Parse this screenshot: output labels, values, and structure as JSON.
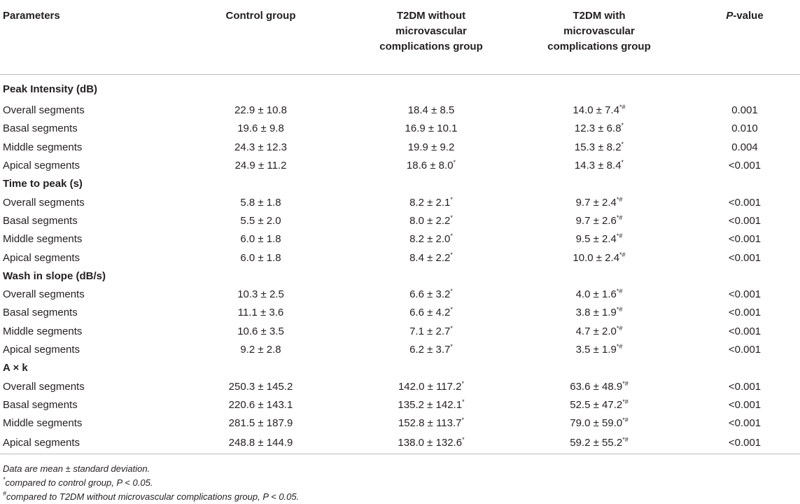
{
  "table": {
    "headers": {
      "parameters": "Parameters",
      "control": "Control group",
      "without": "T2DM without microvascular complications group",
      "with": "T2DM with microvascular complications group",
      "p_italic": "P",
      "p_rest": "-value"
    },
    "sections": [
      {
        "title": "Peak Intensity (dB)",
        "rows": [
          {
            "label": "Overall segments",
            "control": "22.9 ± 10.8",
            "without": "18.4 ± 8.5",
            "with": "14.0 ± 7.4",
            "with_sup": "*#",
            "without_sup": "",
            "p": "0.001"
          },
          {
            "label": "Basal segments",
            "control": "19.6 ± 9.8",
            "without": "16.9 ± 10.1",
            "with": "12.3 ± 6.8",
            "with_sup": "*",
            "without_sup": "",
            "p": "0.010"
          },
          {
            "label": "Middle segments",
            "control": "24.3 ± 12.3",
            "without": "19.9 ± 9.2",
            "with": "15.3 ± 8.2",
            "with_sup": "*",
            "without_sup": "",
            "p": "0.004"
          },
          {
            "label": "Apical segments",
            "control": "24.9 ± 11.2",
            "without": "18.6 ± 8.0",
            "with": "14.3 ± 8.4",
            "with_sup": "*",
            "without_sup": "*",
            "p": "<0.001"
          }
        ]
      },
      {
        "title": "Time to peak (s)",
        "rows": [
          {
            "label": "Overall segments",
            "control": "5.8 ± 1.8",
            "without": "8.2 ± 2.1",
            "with": "9.7 ± 2.4",
            "with_sup": "*#",
            "without_sup": "*",
            "p": "<0.001"
          },
          {
            "label": "Basal segments",
            "control": "5.5 ± 2.0",
            "without": "8.0 ± 2.2",
            "with": "9.7 ± 2.6",
            "with_sup": "*#",
            "without_sup": "*",
            "p": "<0.001"
          },
          {
            "label": "Middle segments",
            "control": "6.0 ± 1.8",
            "without": "8.2 ± 2.0",
            "with": "9.5 ± 2.4",
            "with_sup": "*#",
            "without_sup": "*",
            "p": "<0.001"
          },
          {
            "label": "Apical segments",
            "control": "6.0 ± 1.8",
            "without": "8.4 ± 2.2",
            "with": "10.0 ± 2.4",
            "with_sup": "*#",
            "without_sup": "*",
            "p": "<0.001"
          }
        ]
      },
      {
        "title": "Wash in slope (dB/s)",
        "rows": [
          {
            "label": "Overall segments",
            "control": "10.3 ± 2.5",
            "without": "6.6 ± 3.2",
            "with": "4.0 ± 1.6",
            "with_sup": "*#",
            "without_sup": "*",
            "p": "<0.001"
          },
          {
            "label": "Basal segments",
            "control": "11.1 ± 3.6",
            "without": "6.6 ± 4.2",
            "with": "3.8 ± 1.9",
            "with_sup": "*#",
            "without_sup": "*",
            "p": "<0.001"
          },
          {
            "label": "Middle segments",
            "control": "10.6 ± 3.5",
            "without": "7.1 ± 2.7",
            "with": "4.7 ± 2.0",
            "with_sup": "*#",
            "without_sup": "*",
            "p": "<0.001"
          },
          {
            "label": "Apical segments",
            "control": "9.2 ± 2.8",
            "without": "6.2 ± 3.7",
            "with": "3.5 ± 1.9",
            "with_sup": "*#",
            "without_sup": "*",
            "p": "<0.001"
          }
        ]
      },
      {
        "title": "A × k",
        "rows": [
          {
            "label": "Overall segments",
            "control": "250.3 ± 145.2",
            "without": "142.0 ± 117.2",
            "with": "63.6 ± 48.9",
            "with_sup": "*#",
            "without_sup": "*",
            "p": "<0.001"
          },
          {
            "label": "Basal segments",
            "control": "220.6 ± 143.1",
            "without": "135.2 ± 142.1",
            "with": "52.5 ± 47.2",
            "with_sup": "*#",
            "without_sup": "*",
            "p": "<0.001"
          },
          {
            "label": "Middle segments",
            "control": "281.5 ± 187.9",
            "without": "152.8 ± 113.7",
            "with": "79.0 ± 59.0",
            "with_sup": "*#",
            "without_sup": "*",
            "p": "<0.001"
          },
          {
            "label": "Apical segments",
            "control": "248.8 ± 144.9",
            "without": "138.0 ± 132.6",
            "with": "59.2 ± 55.2",
            "with_sup": "*#",
            "without_sup": "*",
            "p": "<0.001"
          }
        ]
      }
    ]
  },
  "notes": {
    "line1": "Data are mean ± standard deviation.",
    "line2_sup": "*",
    "line2": "compared to control group, P < 0.05.",
    "line3_sup": "#",
    "line3": "compared to T2DM without microvascular complications group, P < 0.05."
  }
}
